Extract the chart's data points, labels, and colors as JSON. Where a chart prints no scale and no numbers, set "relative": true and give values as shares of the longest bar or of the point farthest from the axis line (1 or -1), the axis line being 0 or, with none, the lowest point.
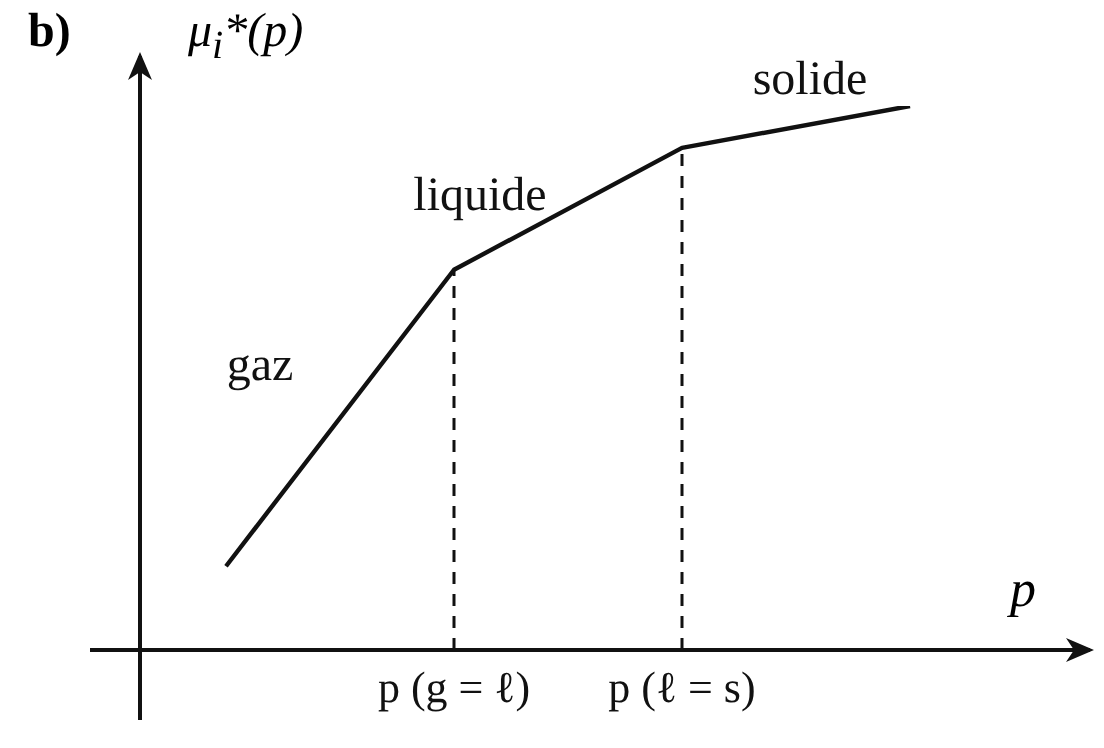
{
  "chart_data": {
    "type": "line",
    "title": "b)",
    "ylabel": "μ$_{i}$*(p)",
    "xlabel": "p",
    "relative": true,
    "categories": [
      null,
      "p (g = ℓ)",
      "p (ℓ = s)",
      null
    ],
    "series": [
      {
        "color": "#111111",
        "values": [
          0.154,
          0.699,
          0.923,
          1
        ]
      }
    ],
    "ref_lines": [
      {
        "axis": "x",
        "value": "p (g = ℓ)",
        "line_style": "dashed",
        "color": "#111111"
      },
      {
        "axis": "x",
        "value": "p (ℓ = s)",
        "line_style": "dashed",
        "color": "#111111"
      }
    ],
    "annotations": [
      "gaz",
      "liquide",
      "solide"
    ],
    "tick_labels": "x",
    "marker": "none",
    "line_style": "solid"
  }
}
